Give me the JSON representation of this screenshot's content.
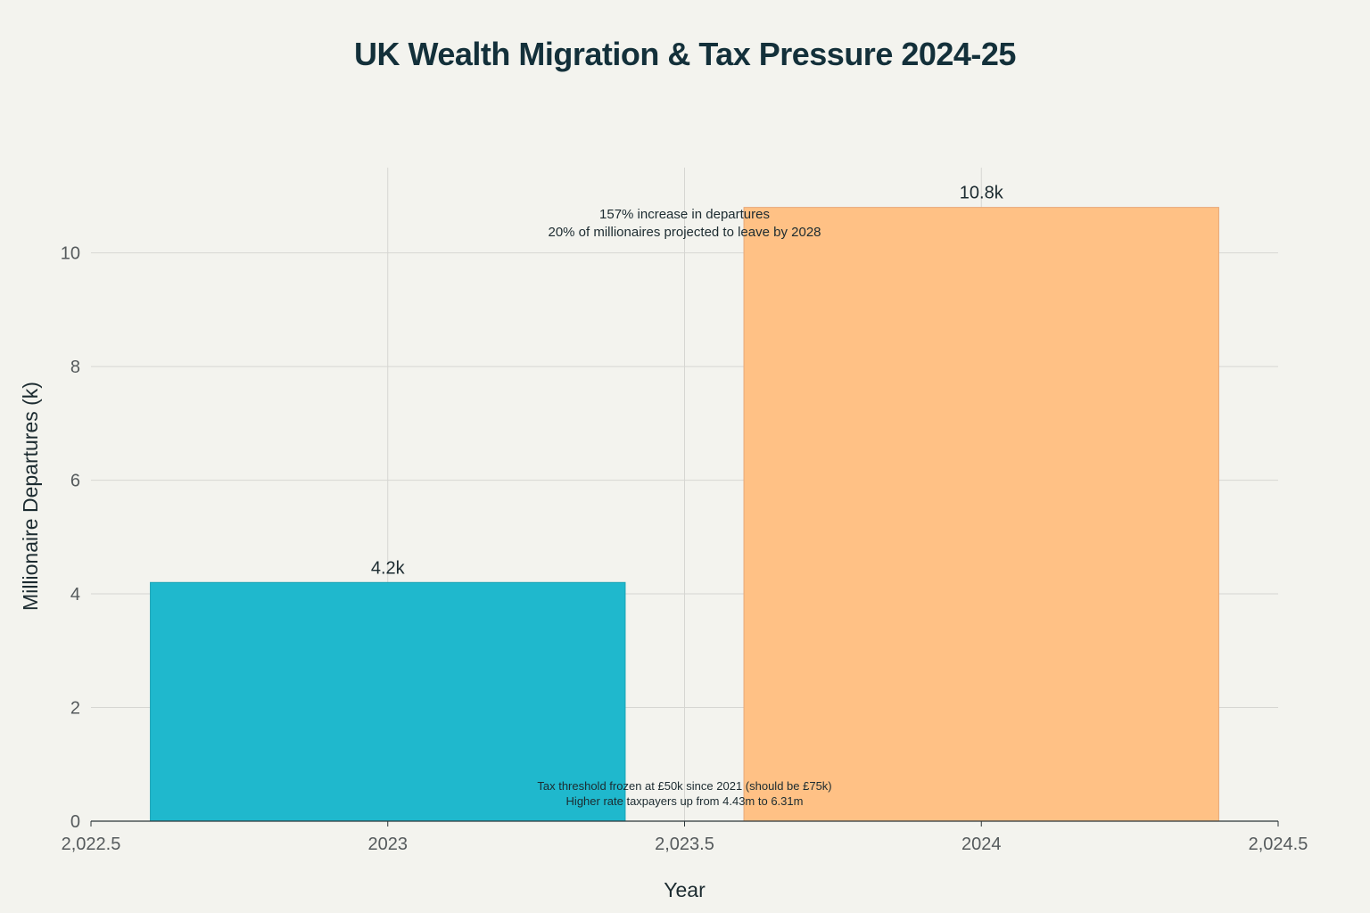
{
  "chart_data": {
    "type": "bar",
    "title": "UK Wealth Migration & Tax Pressure 2024-25",
    "xlabel": "Year",
    "ylabel": "Millionaire Departures (k)",
    "x": [
      2023,
      2024
    ],
    "values": [
      4.2,
      10.8
    ],
    "data_labels": [
      "4.2k",
      "10.8k"
    ],
    "bar_colors": [
      "#1fb8cd",
      "#ffc185"
    ],
    "bar_width": 0.8,
    "xlim": [
      2022.5,
      2024.5
    ],
    "ylim": [
      0,
      11.5
    ],
    "x_ticks": [
      2022.5,
      2023,
      2023.5,
      2024,
      2024.5
    ],
    "x_tick_labels": [
      "2,022.5",
      "2023",
      "2,023.5",
      "2024",
      "2,024.5"
    ],
    "y_ticks": [
      0,
      2,
      4,
      6,
      8,
      10
    ],
    "y_tick_labels": [
      "0",
      "2",
      "4",
      "6",
      "8",
      "10"
    ],
    "grid": true,
    "annotations": [
      {
        "x": 2023.5,
        "y": 10.45,
        "lines": [
          "157% increase in departures",
          "20% of millionaires projected to leave by 2028"
        ]
      },
      {
        "x": 2023.5,
        "y": 0.5,
        "lines": [
          "Tax threshold frozen at £50k since 2021 (should be £75k)",
          "Higher rate taxpayers up from 4.43m to 6.31m"
        ]
      }
    ]
  }
}
